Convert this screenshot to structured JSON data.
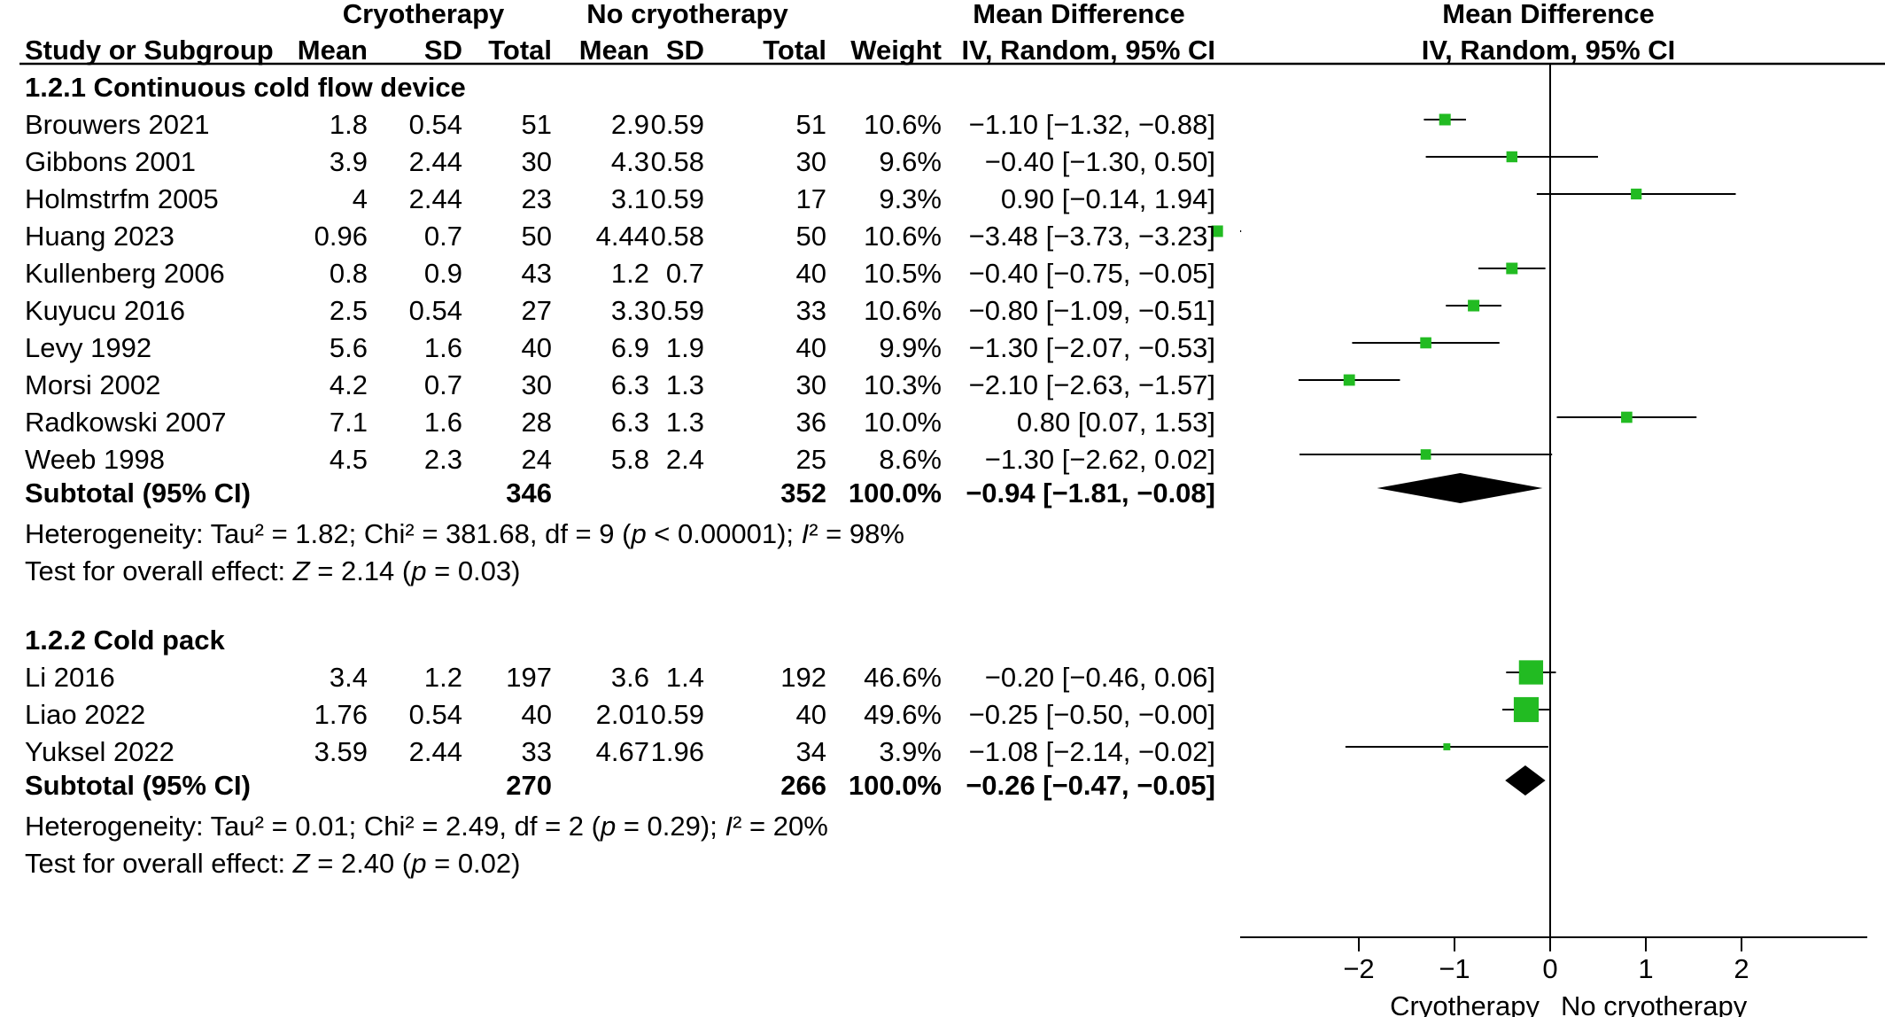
{
  "chart_data": {
    "type": "forest",
    "header": {
      "group1": "Cryotherapy",
      "group2": "No cryotherapy",
      "md_top": "Mean Difference",
      "columns": [
        "Study or Subgroup",
        "Mean",
        "SD",
        "Total",
        "Mean",
        "SD",
        "Total",
        "Weight",
        "IV, Random, 95% CI"
      ],
      "plot_top": "Mean Difference",
      "plot_sub": "IV, Random, 95% CI"
    },
    "subgroups": [
      {
        "title": "1.2.1 Continuous cold flow device",
        "studies": [
          {
            "name": "Brouwers 2021",
            "m1": "1.8",
            "sd1": "0.54",
            "n1": "51",
            "m2": "2.9",
            "sd2": "0.59",
            "n2": "51",
            "weight": "10.6%",
            "ci_text": "−1.10 [−1.32, −0.88]",
            "md": -1.1,
            "lo": -1.32,
            "hi": -0.88,
            "w": 10.6
          },
          {
            "name": "Gibbons  2001",
            "m1": "3.9",
            "sd1": "2.44",
            "n1": "30",
            "m2": "4.3",
            "sd2": "0.58",
            "n2": "30",
            "weight": "9.6%",
            "ci_text": "−0.40 [−1.30, 0.50]",
            "md": -0.4,
            "lo": -1.3,
            "hi": 0.5,
            "w": 9.6
          },
          {
            "name": "Holmstrfm 2005",
            "m1": "4",
            "sd1": "2.44",
            "n1": "23",
            "m2": "3.1",
            "sd2": "0.59",
            "n2": "17",
            "weight": "9.3%",
            "ci_text": "0.90 [−0.14, 1.94]",
            "md": 0.9,
            "lo": -0.14,
            "hi": 1.94,
            "w": 9.3
          },
          {
            "name": "Huang 2023",
            "m1": "0.96",
            "sd1": "0.7",
            "n1": "50",
            "m2": "4.44",
            "sd2": "0.58",
            "n2": "50",
            "weight": "10.6%",
            "ci_text": "−3.48 [−3.73, −3.23]",
            "md": -3.48,
            "lo": -3.73,
            "hi": -3.23,
            "w": 10.6
          },
          {
            "name": "Kullenberg  2006",
            "m1": "0.8",
            "sd1": "0.9",
            "n1": "43",
            "m2": "1.2",
            "sd2": "0.7",
            "n2": "40",
            "weight": "10.5%",
            "ci_text": "−0.40 [−0.75, −0.05]",
            "md": -0.4,
            "lo": -0.75,
            "hi": -0.05,
            "w": 10.5
          },
          {
            "name": "Kuyucu  2016",
            "m1": "2.5",
            "sd1": "0.54",
            "n1": "27",
            "m2": "3.3",
            "sd2": "0.59",
            "n2": "33",
            "weight": "10.6%",
            "ci_text": "−0.80 [−1.09, −0.51]",
            "md": -0.8,
            "lo": -1.09,
            "hi": -0.51,
            "w": 10.6
          },
          {
            "name": "Levy 1992",
            "m1": "5.6",
            "sd1": "1.6",
            "n1": "40",
            "m2": "6.9",
            "sd2": "1.9",
            "n2": "40",
            "weight": "9.9%",
            "ci_text": "−1.30 [−2.07, −0.53]",
            "md": -1.3,
            "lo": -2.07,
            "hi": -0.53,
            "w": 9.9
          },
          {
            "name": "Morsi  2002",
            "m1": "4.2",
            "sd1": "0.7",
            "n1": "30",
            "m2": "6.3",
            "sd2": "1.3",
            "n2": "30",
            "weight": "10.3%",
            "ci_text": "−2.10 [−2.63, −1.57]",
            "md": -2.1,
            "lo": -2.63,
            "hi": -1.57,
            "w": 10.3
          },
          {
            "name": "Radkowski  2007",
            "m1": "7.1",
            "sd1": "1.6",
            "n1": "28",
            "m2": "6.3",
            "sd2": "1.3",
            "n2": "36",
            "weight": "10.0%",
            "ci_text": "0.80 [0.07, 1.53]",
            "md": 0.8,
            "lo": 0.07,
            "hi": 1.53,
            "w": 10.0
          },
          {
            "name": "Weeb 1998",
            "m1": "4.5",
            "sd1": "2.3",
            "n1": "24",
            "m2": "5.8",
            "sd2": "2.4",
            "n2": "25",
            "weight": "8.6%",
            "ci_text": "−1.30 [−2.62, 0.02]",
            "md": -1.3,
            "lo": -2.62,
            "hi": 0.02,
            "w": 8.6
          }
        ],
        "subtotal": {
          "label": "Subtotal (95% CI)",
          "n1": "346",
          "n2": "352",
          "weight": "100.0%",
          "ci_text": "−0.94 [−1.81, −0.08]",
          "md": -0.94,
          "lo": -1.81,
          "hi": -0.08
        },
        "heterogeneity": {
          "pre": "Heterogeneity: Tau² = 1.82; Chi² = 381.68, df = 9 (",
          "p": "p",
          "mid": " < 0.00001); ",
          "i": "I",
          "post": "² = 98%"
        },
        "overall": {
          "pre": "Test for overall effect: ",
          "z": "Z",
          "mid": " = 2.14 (",
          "p": "p",
          "post": " = 0.03)"
        }
      },
      {
        "title": "1.2.2 Cold pack",
        "studies": [
          {
            "name": "Li  2016",
            "m1": "3.4",
            "sd1": "1.2",
            "n1": "197",
            "m2": "3.6",
            "sd2": "1.4",
            "n2": "192",
            "weight": "46.6%",
            "ci_text": "−0.20 [−0.46, 0.06]",
            "md": -0.2,
            "lo": -0.46,
            "hi": 0.06,
            "w": 46.6
          },
          {
            "name": "Liao 2022",
            "m1": "1.76",
            "sd1": "0.54",
            "n1": "40",
            "m2": "2.01",
            "sd2": "0.59",
            "n2": "40",
            "weight": "49.6%",
            "ci_text": "−0.25 [−0.50, −0.00]",
            "md": -0.25,
            "lo": -0.5,
            "hi": -0.0,
            "w": 49.6
          },
          {
            "name": "Yuksel  2022",
            "m1": "3.59",
            "sd1": "2.44",
            "n1": "33",
            "m2": "4.67",
            "sd2": "1.96",
            "n2": "34",
            "weight": "3.9%",
            "ci_text": "−1.08 [−2.14, −0.02]",
            "md": -1.08,
            "lo": -2.14,
            "hi": -0.02,
            "w": 3.9
          }
        ],
        "subtotal": {
          "label": "Subtotal (95% CI)",
          "n1": "270",
          "n2": "266",
          "weight": "100.0%",
          "ci_text": "−0.26 [−0.47, −0.05]",
          "md": -0.26,
          "lo": -0.47,
          "hi": -0.05
        },
        "heterogeneity": {
          "pre": "Heterogeneity: Tau² = 0.01; Chi² = 2.49, df = 2 (",
          "p": "p",
          "mid": " = 0.29); ",
          "i": "I",
          "post": "² = 20%"
        },
        "overall": {
          "pre": "Test for overall effect: ",
          "z": "Z",
          "mid": " = 2.40 (",
          "p": "p",
          "post": " = 0.02)"
        }
      }
    ],
    "axis": {
      "ticks": [
        -2,
        -1,
        0,
        1,
        2
      ],
      "tick_labels": [
        "−2",
        "−1",
        "0",
        "1",
        "2"
      ],
      "xlim": [
        -3.2,
        3.2
      ],
      "favours_left": "Cryotherapy",
      "favours_right": "No cryotherapy"
    },
    "colors": {
      "marker": "#22bb22",
      "diamond": "#000000",
      "line": "#000000"
    }
  }
}
